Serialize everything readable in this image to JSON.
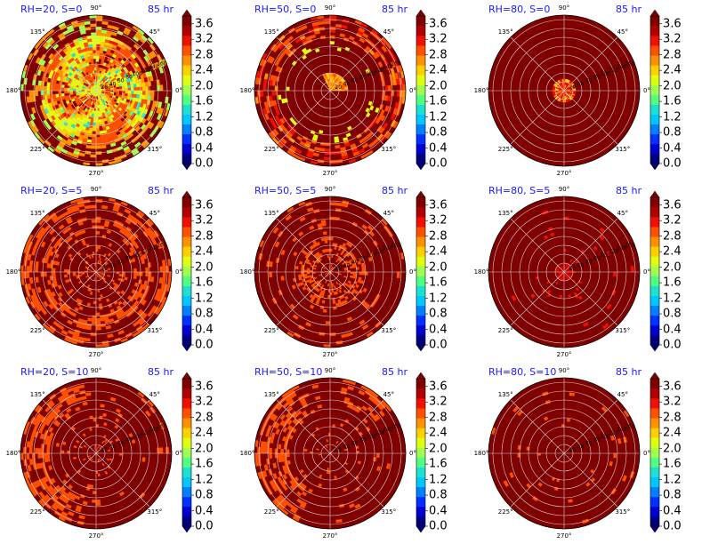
{
  "figure": {
    "panels": [
      {
        "title": "RH=20, S=0",
        "time": "85 hr",
        "field": "rh20s0"
      },
      {
        "title": "RH=50, S=0",
        "time": "85 hr",
        "field": "rh50s0"
      },
      {
        "title": "RH=80, S=0",
        "time": "85 hr",
        "field": "rh80s0"
      },
      {
        "title": "RH=20, S=5",
        "time": "85 hr",
        "field": "rh20s5"
      },
      {
        "title": "RH=50, S=5",
        "time": "85 hr",
        "field": "rh50s5"
      },
      {
        "title": "RH=80, S=5",
        "time": "85 hr",
        "field": "rh80s5"
      },
      {
        "title": "RH=20, S=10",
        "time": "85 hr",
        "field": "rh20s10"
      },
      {
        "title": "RH=50, S=10",
        "time": "85 hr",
        "field": "rh50s10"
      },
      {
        "title": "RH=80, S=10",
        "time": "85 hr",
        "field": "rh80s10"
      }
    ],
    "direction_labels": [
      "90°",
      "45°",
      "0°",
      "315°",
      "270°",
      "225°",
      "180°",
      "135°"
    ],
    "ring_labels": [
      "20",
      "40",
      "60",
      "80",
      "100",
      "120",
      "140",
      "160"
    ],
    "colorbar_ticks": [
      "3.6",
      "3.2",
      "2.8",
      "2.4",
      "2.0",
      "1.6",
      "1.2",
      "0.8",
      "0.4",
      "0.0"
    ],
    "colormap": [
      "#00007f",
      "#0000d0",
      "#0030ff",
      "#0080ff",
      "#00c8ff",
      "#1ce0d0",
      "#50ff80",
      "#a0ff50",
      "#e0ff10",
      "#ffd000",
      "#ff9000",
      "#ff5000",
      "#f01000",
      "#b00000",
      "#800000"
    ]
  },
  "chart_data": {
    "type": "heatmap",
    "projection": "polar",
    "title": "",
    "angular_ticks_deg": [
      0,
      45,
      90,
      135,
      180,
      225,
      270,
      315
    ],
    "radial_ticks": [
      20,
      40,
      60,
      80,
      100,
      120,
      140,
      160
    ],
    "colorbar": {
      "min": 0.0,
      "max": 3.8,
      "ticks": [
        0.0,
        0.4,
        0.8,
        1.2,
        1.6,
        2.0,
        2.4,
        2.8,
        3.2,
        3.6
      ],
      "extend": "both"
    },
    "grid": true,
    "layout": "3x3",
    "panels": [
      {
        "title": "RH=20, S=0",
        "time": "85 hr"
      },
      {
        "title": "RH=50, S=0",
        "time": "85 hr"
      },
      {
        "title": "RH=80, S=0",
        "time": "85 hr"
      },
      {
        "title": "RH=20, S=5",
        "time": "85 hr"
      },
      {
        "title": "RH=50, S=5",
        "time": "85 hr"
      },
      {
        "title": "RH=80, S=5",
        "time": "85 hr"
      },
      {
        "title": "RH=20, S=10",
        "time": "85 hr"
      },
      {
        "title": "RH=50, S=10",
        "time": "85 hr"
      },
      {
        "title": "RH=80, S=10",
        "time": "85 hr"
      }
    ]
  }
}
